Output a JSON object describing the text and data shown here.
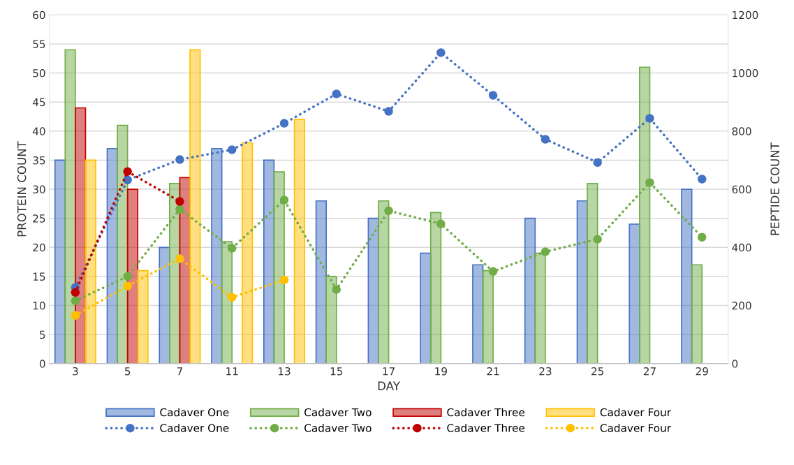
{
  "chart_data": {
    "type": "bar",
    "xlabel": "DAY",
    "ylabel": "PROTEIN COUNT",
    "y2label": "PEPTIDE COUNT",
    "categories": [
      "3",
      "5",
      "7",
      "11",
      "13",
      "15",
      "17",
      "19",
      "21",
      "23",
      "25",
      "27",
      "29"
    ],
    "ylim": [
      0,
      60
    ],
    "yticks": [
      0,
      5,
      10,
      15,
      20,
      25,
      30,
      35,
      40,
      45,
      50,
      55,
      60
    ],
    "y2lim": [
      0,
      1200
    ],
    "y2ticks": [
      0,
      200,
      400,
      600,
      800,
      1000,
      1200
    ],
    "grid": "y",
    "legend": "bottom",
    "series": [
      {
        "name": "Cadaver One",
        "color": "#4472c4",
        "values": [
          35,
          37,
          20,
          37,
          35,
          28,
          25,
          19,
          17,
          25,
          28,
          24,
          30
        ]
      },
      {
        "name": "Cadaver Two",
        "color": "#70ad47",
        "values": [
          54,
          41,
          31,
          21,
          33,
          15,
          28,
          26,
          16,
          19,
          31,
          51,
          17
        ]
      },
      {
        "name": "Cadaver Three",
        "color": "#c00000",
        "values": [
          44,
          30,
          32,
          null,
          null,
          null,
          null,
          null,
          null,
          null,
          null,
          null,
          null
        ]
      },
      {
        "name": "Cadaver Four",
        "color": "#ffc000",
        "values": [
          35,
          16,
          54,
          38,
          42,
          null,
          null,
          null,
          null,
          null,
          null,
          null,
          null
        ]
      },
      {
        "name": "Cadaver One",
        "type": "line",
        "axis": "y2",
        "marker": "circle",
        "line_style": "dotted",
        "color": "#4472c4",
        "values": [
          262,
          632,
          702,
          736,
          827,
          928,
          868,
          1070,
          923,
          772,
          692,
          844,
          635
        ]
      },
      {
        "name": "Cadaver Two",
        "type": "line",
        "axis": "y2",
        "marker": "circle",
        "line_style": "dotted",
        "color": "#70ad47",
        "values": [
          216,
          300,
          531,
          397,
          563,
          255,
          526,
          481,
          317,
          385,
          428,
          623,
          435
        ]
      },
      {
        "name": "Cadaver Three",
        "type": "line",
        "axis": "y2",
        "marker": "circle",
        "line_style": "dotted",
        "color": "#c00000",
        "values": [
          245,
          661,
          558,
          null,
          null,
          null,
          null,
          null,
          null,
          null,
          null,
          null,
          null
        ]
      },
      {
        "name": "Cadaver Four",
        "type": "line",
        "axis": "y2",
        "marker": "circle",
        "line_style": "dotted",
        "color": "#ffc000",
        "values": [
          166,
          267,
          361,
          228,
          288,
          null,
          null,
          null,
          null,
          null,
          null,
          null,
          null
        ]
      }
    ]
  }
}
